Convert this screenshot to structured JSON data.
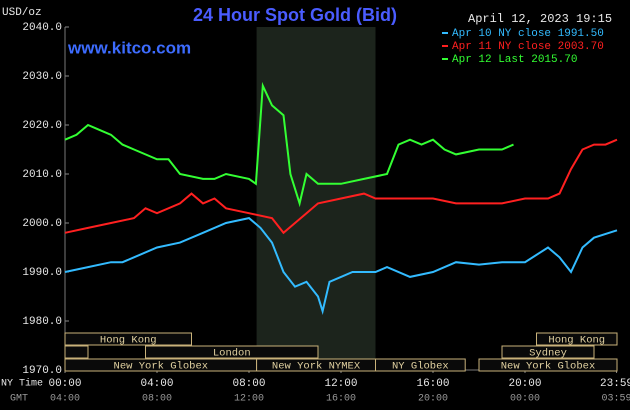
{
  "chart_data": {
    "type": "line",
    "title": "24 Hour Spot Gold (Bid)",
    "y_label": "USD/oz",
    "watermark": "www.kitco.com",
    "timestamp": "April 12, 2023 19:15",
    "x_row_labels": [
      "NY Time",
      "GMT"
    ],
    "xlim": [
      0,
      24
    ],
    "xticks": [
      {
        "value": 0,
        "label": "00:00"
      },
      {
        "value": 4,
        "label": "04:00"
      },
      {
        "value": 8,
        "label": "08:00"
      },
      {
        "value": 12,
        "label": "12:00"
      },
      {
        "value": 16,
        "label": "16:00"
      },
      {
        "value": 20,
        "label": "20:00"
      },
      {
        "value": 23.98,
        "label": "23:59"
      }
    ],
    "x2ticks": [
      {
        "value": 0,
        "label": "04:00"
      },
      {
        "value": 4,
        "label": "08:00"
      },
      {
        "value": 8,
        "label": "12:00"
      },
      {
        "value": 12,
        "label": "16:00"
      },
      {
        "value": 16,
        "label": "20:00"
      },
      {
        "value": 20,
        "label": "00:00"
      },
      {
        "value": 23.98,
        "label": "03:59"
      }
    ],
    "ylim": [
      1970,
      2040
    ],
    "yticks": [
      {
        "value": 1970,
        "label": "1970.0"
      },
      {
        "value": 1980,
        "label": "1980.0"
      },
      {
        "value": 1990,
        "label": "1990.0"
      },
      {
        "value": 2000,
        "label": "2000.0"
      },
      {
        "value": 2010,
        "label": "2010.0"
      },
      {
        "value": 2020,
        "label": "2020.0"
      },
      {
        "value": 2030,
        "label": "2030.0"
      },
      {
        "value": 2040,
        "label": "2040.0"
      }
    ],
    "shaded_range": [
      8.33,
      13.5
    ],
    "series": [
      {
        "name": "Apr 10 NY close 1991.50",
        "color": "#33bbff",
        "x": [
          0,
          1,
          2,
          2.5,
          3,
          4,
          5,
          6,
          7,
          8,
          8.5,
          9,
          9.5,
          10,
          10.5,
          11,
          11.2,
          11.5,
          12,
          12.5,
          13,
          13.5,
          14,
          15,
          16,
          17,
          18,
          19,
          20,
          21,
          21.5,
          22,
          22.5,
          23,
          24
        ],
        "values": [
          1990,
          1991,
          1992,
          1992,
          1993,
          1995,
          1996,
          1998,
          2000,
          2001,
          1999,
          1996,
          1990,
          1987,
          1988,
          1985,
          1982,
          1988,
          1989,
          1990,
          1990,
          1990,
          1991,
          1989,
          1990,
          1992,
          1991.5,
          1992,
          1992,
          1995,
          1993,
          1990,
          1995,
          1997,
          1998.5
        ]
      },
      {
        "name": "Apr 11 NY close 2003.70",
        "color": "#ff2020",
        "x": [
          0,
          1,
          2,
          3,
          3.5,
          4,
          5,
          5.5,
          6,
          6.5,
          7,
          8,
          9,
          9.5,
          10,
          10.5,
          11,
          12,
          13,
          13.5,
          14,
          15,
          16,
          17,
          18,
          19,
          20,
          21,
          21.5,
          22,
          22.5,
          23,
          23.5,
          24
        ],
        "values": [
          1998,
          1999,
          2000,
          2001,
          2003,
          2002,
          2004,
          2006,
          2004,
          2005,
          2003,
          2002,
          2001,
          1998,
          2000,
          2002,
          2004,
          2005,
          2006,
          2005,
          2005,
          2005,
          2005,
          2004,
          2004,
          2004,
          2005,
          2005,
          2006,
          2011,
          2015,
          2016,
          2016,
          2017
        ]
      },
      {
        "name": "Apr 12 Last 2015.70",
        "color": "#33ff33",
        "x": [
          0,
          0.5,
          1,
          1.5,
          2,
          2.5,
          3,
          4,
          4.5,
          5,
          6,
          6.5,
          7,
          8,
          8.3,
          8.6,
          9,
          9.5,
          9.8,
          10.2,
          10.5,
          11,
          12,
          13,
          14,
          14.5,
          15,
          15.5,
          16,
          16.5,
          17,
          18,
          19,
          19.5
        ],
        "values": [
          2017,
          2018,
          2020,
          2019,
          2018,
          2016,
          2015,
          2013,
          2013,
          2010,
          2009,
          2009,
          2010,
          2009,
          2008,
          2028,
          2024,
          2022,
          2010,
          2004,
          2010,
          2008,
          2008,
          2009,
          2010,
          2016,
          2017,
          2016,
          2017,
          2015,
          2014,
          2015,
          2015,
          2016
        ]
      }
    ],
    "session_rows": [
      [
        {
          "name": "Hong Kong",
          "start": 0,
          "end": 5.5
        },
        {
          "name": "Hong Kong",
          "start": 20.5,
          "end": 24
        }
      ],
      [
        {
          "name": null,
          "start": 0,
          "end": 1
        },
        {
          "name": "London",
          "start": 3.5,
          "end": 11
        },
        {
          "name": "Sydney",
          "start": 19,
          "end": 23
        }
      ],
      [
        {
          "name": "New York Globex",
          "start": 0,
          "end": 8.33
        },
        {
          "name": "New York NYMEX",
          "start": 8.33,
          "end": 13.5
        },
        {
          "name": "NY Globex",
          "start": 13.5,
          "end": 17.4
        },
        {
          "name": "New York Globex",
          "start": 18,
          "end": 24
        }
      ]
    ]
  }
}
